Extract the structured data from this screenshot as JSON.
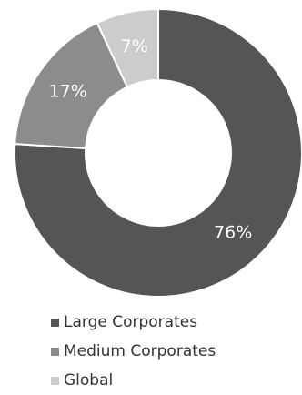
{
  "chart_data": {
    "type": "pie",
    "variant": "donut",
    "categories": [
      "Large Corporates",
      "Medium Corporates",
      "Global"
    ],
    "values": [
      76,
      17,
      7
    ],
    "labels": [
      "76%",
      "17%",
      "7%"
    ],
    "colors": [
      "#555555",
      "#8c8c8c",
      "#cccccc"
    ],
    "legend_position": "bottom-left"
  }
}
